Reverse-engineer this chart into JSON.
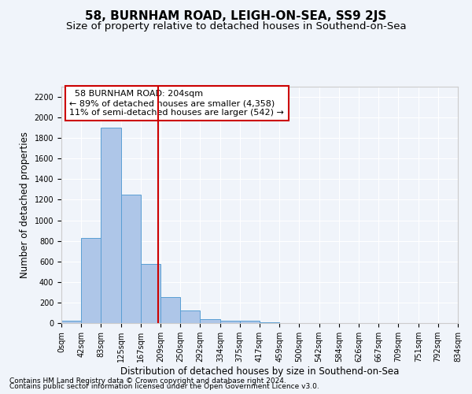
{
  "title": "58, BURNHAM ROAD, LEIGH-ON-SEA, SS9 2JS",
  "subtitle": "Size of property relative to detached houses in Southend-on-Sea",
  "xlabel": "Distribution of detached houses by size in Southend-on-Sea",
  "ylabel": "Number of detached properties",
  "footnote1": "Contains HM Land Registry data © Crown copyright and database right 2024.",
  "footnote2": "Contains public sector information licensed under the Open Government Licence v3.0.",
  "annotation_title": "58 BURNHAM ROAD: 204sqm",
  "annotation_line1": "← 89% of detached houses are smaller (4,358)",
  "annotation_line2": "11% of semi-detached houses are larger (542) →",
  "property_size": 204,
  "bin_edges": [
    0,
    42,
    83,
    125,
    167,
    209,
    250,
    292,
    334,
    375,
    417,
    459,
    500,
    542,
    584,
    626,
    667,
    709,
    751,
    792,
    834
  ],
  "bar_heights": [
    20,
    830,
    1900,
    1250,
    575,
    250,
    120,
    40,
    25,
    20,
    10,
    3,
    1,
    0,
    0,
    0,
    0,
    0,
    0,
    0
  ],
  "bar_color": "#aec6e8",
  "bar_edge_color": "#5a9fd4",
  "vline_color": "#cc0000",
  "vline_x": 204,
  "box_color": "#cc0000",
  "ylim": [
    0,
    2300
  ],
  "yticks": [
    0,
    200,
    400,
    600,
    800,
    1000,
    1200,
    1400,
    1600,
    1800,
    2000,
    2200
  ],
  "background_color": "#f0f4fa",
  "grid_color": "#ffffff",
  "title_fontsize": 11,
  "subtitle_fontsize": 9.5,
  "tick_fontsize": 7,
  "label_fontsize": 8.5,
  "annotation_fontsize": 8,
  "footnote_fontsize": 6.5
}
